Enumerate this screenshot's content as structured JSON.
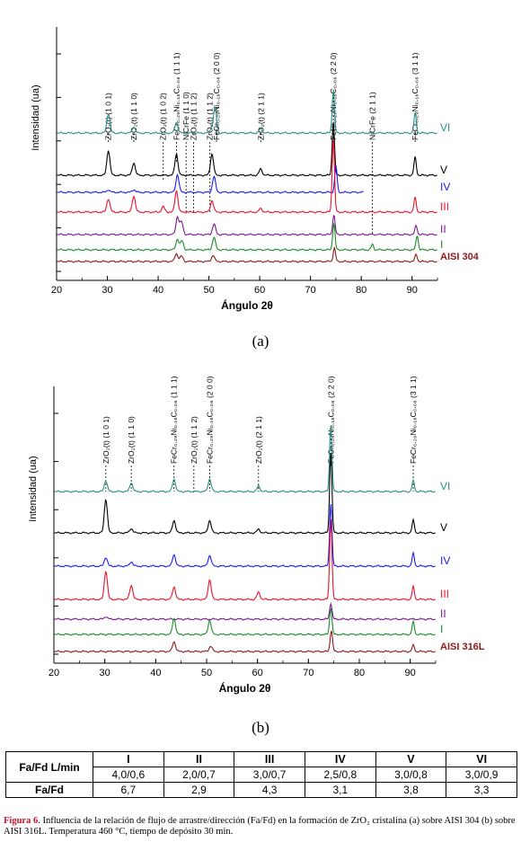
{
  "panels": [
    {
      "id": "a",
      "label": "(a)",
      "xlabel": "Ángulo 2θ",
      "ylabel": "Intensidad (ua)",
      "xlim": [
        20,
        95
      ],
      "xticks": [
        20,
        30,
        40,
        50,
        60,
        70,
        80,
        90
      ],
      "series": [
        {
          "name": "VI",
          "color": "#2a8f86",
          "peaks": [
            [
              30.2,
              22
            ],
            [
              35.2,
              7
            ],
            [
              43.6,
              12
            ],
            [
              50.5,
              5
            ],
            [
              51.2,
              28
            ],
            [
              60.2,
              5
            ],
            [
              74.5,
              48
            ],
            [
              90.6,
              22
            ]
          ]
        },
        {
          "name": "V",
          "color": "#000000",
          "peaks": [
            [
              30.2,
              28
            ],
            [
              35.2,
              14
            ],
            [
              43.6,
              24
            ],
            [
              50.6,
              24
            ],
            [
              60.2,
              7
            ],
            [
              74.5,
              60
            ],
            [
              90.6,
              20
            ]
          ]
        },
        {
          "name": "IV",
          "color": "#1a1aff",
          "peaks": [
            [
              30.2,
              3
            ],
            [
              35.2,
              3
            ],
            [
              43.8,
              20
            ],
            [
              51.0,
              18
            ],
            [
              75.0,
              30
            ]
          ],
          "xmax": 80.5
        },
        {
          "name": "III",
          "color": "#e8132a",
          "peaks": [
            [
              30.2,
              15
            ],
            [
              35.2,
              18
            ],
            [
              41.0,
              6
            ],
            [
              43.6,
              24
            ],
            [
              50.6,
              13
            ],
            [
              60.2,
              4
            ],
            [
              74.5,
              82
            ],
            [
              90.6,
              16
            ]
          ]
        },
        {
          "name": "II",
          "color": "#7a1a8e",
          "peaks": [
            [
              43.8,
              20
            ],
            [
              44.6,
              14
            ],
            [
              51.0,
              12
            ],
            [
              74.6,
              22
            ],
            [
              90.8,
              10
            ]
          ]
        },
        {
          "name": "I",
          "color": "#1c8a2a",
          "peaks": [
            [
              43.8,
              12
            ],
            [
              44.7,
              10
            ],
            [
              51.0,
              14
            ],
            [
              74.6,
              30
            ],
            [
              82.2,
              6
            ],
            [
              91.0,
              16
            ]
          ]
        },
        {
          "name": "AISI 304",
          "color": "#8b1a1a",
          "peaks": [
            [
              43.6,
              9
            ],
            [
              44.6,
              6
            ],
            [
              50.8,
              7
            ],
            [
              74.7,
              15
            ],
            [
              90.8,
              8
            ]
          ]
        }
      ],
      "annotations": [
        {
          "x": 30.2,
          "text": "ZrO₂(t) (1 0 1)"
        },
        {
          "x": 35.2,
          "text": "ZrO₂(t) (1 1 0)"
        },
        {
          "x": 41.0,
          "text": "ZrO₂(t) (1 0 2)"
        },
        {
          "x": 43.6,
          "text": "FeCr₀.₂₉Ni₀.₁₆C₀.₀₆ (1 1 1)"
        },
        {
          "x": 45.5,
          "text": "NiCrFe (1 1 0)"
        },
        {
          "x": 47.0,
          "text": "ZrO₂(t) (1 1 2)"
        },
        {
          "x": 50.2,
          "text": "ZrO₂(t) (1 1 2)"
        },
        {
          "x": 51.5,
          "text": "FeCr₀.₂₉Ni₀.₁₆C₀.₀₆ (2 0 0)"
        },
        {
          "x": 60.2,
          "text": "ZrO₂(t) (2 1 1)"
        },
        {
          "x": 74.5,
          "text": "FeCr₀.₂₉Ni₀.₁₆C₀.₀₆ (2 2 0)"
        },
        {
          "x": 82.2,
          "text": "NiCrFe (2 1 1)"
        },
        {
          "x": 90.6,
          "text": "FeCr₀.₂₉Ni₀.₁₆C₀.₀₆ (3 1 1)"
        }
      ]
    },
    {
      "id": "b",
      "label": "(b)",
      "xlabel": "Ángulo 2θ",
      "ylabel": "Intensidad (ua)",
      "xlim": [
        20,
        95
      ],
      "xticks": [
        20,
        30,
        40,
        50,
        60,
        70,
        80,
        90
      ],
      "series": [
        {
          "name": "VI",
          "color": "#2a8f86",
          "peaks": [
            [
              30.2,
              12
            ],
            [
              35.2,
              10
            ],
            [
              43.6,
              14
            ],
            [
              50.6,
              14
            ],
            [
              60.2,
              6
            ],
            [
              74.4,
              75
            ],
            [
              90.6,
              12
            ]
          ]
        },
        {
          "name": "V",
          "color": "#000000",
          "peaks": [
            [
              30.2,
              38
            ],
            [
              35.2,
              5
            ],
            [
              43.6,
              14
            ],
            [
              50.6,
              14
            ],
            [
              60.2,
              4
            ],
            [
              74.4,
              90
            ],
            [
              90.6,
              14
            ]
          ]
        },
        {
          "name": "IV",
          "color": "#1a1aff",
          "peaks": [
            [
              30.2,
              10
            ],
            [
              35.2,
              5
            ],
            [
              43.6,
              13
            ],
            [
              50.6,
              12
            ],
            [
              74.4,
              70
            ],
            [
              90.6,
              14
            ]
          ]
        },
        {
          "name": "III",
          "color": "#e8132a",
          "peaks": [
            [
              30.2,
              32
            ],
            [
              35.2,
              16
            ],
            [
              43.6,
              14
            ],
            [
              50.6,
              22
            ],
            [
              60.2,
              8
            ],
            [
              74.4,
              90
            ],
            [
              90.6,
              14
            ]
          ]
        },
        {
          "name": "II",
          "color": "#7a1a8e",
          "peaks": [
            [
              30.2,
              3
            ],
            [
              74.4,
              18
            ]
          ]
        },
        {
          "name": "I",
          "color": "#1c8a2a",
          "peaks": [
            [
              43.6,
              18
            ],
            [
              50.6,
              16
            ],
            [
              74.4,
              30
            ],
            [
              90.6,
              14
            ]
          ]
        },
        {
          "name": "AISI 316L",
          "color": "#8b1a1a",
          "peaks": [
            [
              43.6,
              11
            ],
            [
              50.8,
              6
            ],
            [
              74.5,
              24
            ],
            [
              90.6,
              7
            ]
          ]
        }
      ],
      "annotations": [
        {
          "x": 30.2,
          "text": "ZrO₂(t) (1 0 1)"
        },
        {
          "x": 35.2,
          "text": "ZrO₂(t) (1 1 0)"
        },
        {
          "x": 43.6,
          "text": "FeCr₀.₂₉Ni₀.₁₆C₀.₀₆ (1 1 1)"
        },
        {
          "x": 47.5,
          "text": "ZrO₂(t) (1 1 2)"
        },
        {
          "x": 50.6,
          "text": "FeCr₀.₂₉Ni₀.₁₆C₀.₀₆ (2 0 0)"
        },
        {
          "x": 60.2,
          "text": "ZrO₂(t) (2 1 1)"
        },
        {
          "x": 74.4,
          "text": "FeCr₀.₂₉Ni₀.₁₆C₀.₀₆ (2 2 0)"
        },
        {
          "x": 90.6,
          "text": "FeCr₀.₂₉Ni₀.₁₆C₀.₀₆ (3 1 1)"
        }
      ]
    }
  ],
  "table": {
    "header_row_label": "Fa/Fd  L/min",
    "columns": [
      "I",
      "II",
      "III",
      "IV",
      "V",
      "VI"
    ],
    "flows": [
      "4,0/0,6",
      "2,0/0,7",
      "3,0/0,7",
      "2,5/0,8",
      "3,0/0,8",
      "3,0/0,9"
    ],
    "ratio_label": "Fa/Fd",
    "ratios": [
      "6,7",
      "2,9",
      "4,3",
      "3,1",
      "3,8",
      "3,3"
    ]
  },
  "caption": {
    "figure_label": "Figura 6",
    "text": ". Influencia de la relación de flujo de arrastre/dirección (Fa/Fd) en la formación de ZrO₂ cristalina (a) sobre AISI 304 (b) sobre AISI 316L. Temperatura 460 °C, tiempo de depósito 30 min."
  },
  "chart_data": [
    {
      "type": "line",
      "title": "",
      "xlabel": "Ángulo 2θ",
      "ylabel": "Intensidad (ua)",
      "xlim": [
        20,
        95
      ],
      "series_names": [
        "VI",
        "V",
        "IV",
        "III",
        "II",
        "I",
        "AISI 304"
      ]
    },
    {
      "type": "line",
      "title": "",
      "xlabel": "Ángulo 2θ",
      "ylabel": "Intensidad (ua)",
      "xlim": [
        20,
        95
      ],
      "series_names": [
        "VI",
        "V",
        "IV",
        "III",
        "II",
        "I",
        "AISI 316L"
      ]
    }
  ]
}
